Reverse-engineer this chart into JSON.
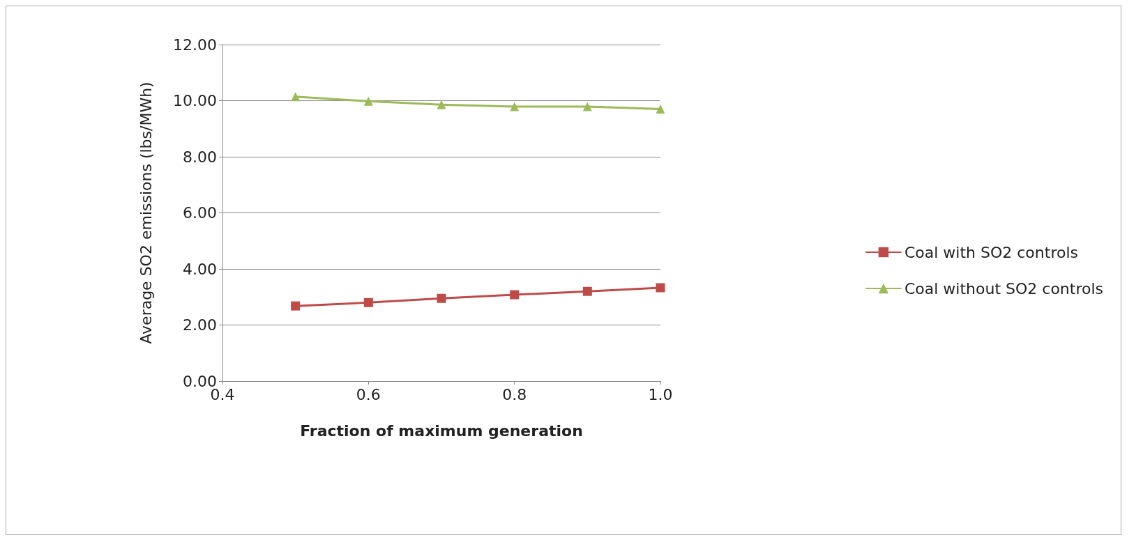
{
  "chart_data": {
    "type": "line",
    "xlabel": "Fraction of maximum generation",
    "ylabel": "Average SO2 emissions (lbs/MWh)",
    "x": [
      0.5,
      0.6,
      0.7,
      0.8,
      0.9,
      1.0
    ],
    "series": [
      {
        "name": "Coal with SO2 controls",
        "color": "#be4b48",
        "marker": "square",
        "values": [
          2.68,
          2.8,
          2.95,
          3.08,
          3.2,
          3.33
        ]
      },
      {
        "name": "Coal without SO2 controls",
        "color": "#9bbb59",
        "marker": "triangle",
        "values": [
          10.14,
          9.98,
          9.86,
          9.79,
          9.79,
          9.7
        ]
      }
    ],
    "xlim": [
      0.4,
      1.0
    ],
    "xticks": [
      0.4,
      0.6,
      0.8,
      {
        "value": 1,
        "label": "1.0"
      }
    ],
    "ylim": [
      0,
      12
    ],
    "yticks": [
      {
        "value": 0,
        "label": "0.00"
      },
      {
        "value": 2,
        "label": "2.00"
      },
      {
        "value": 4,
        "label": "4.00"
      },
      {
        "value": 6,
        "label": "6.00"
      },
      {
        "value": 8,
        "label": "8.00"
      },
      {
        "value": 10,
        "label": "10.00"
      },
      {
        "value": 12,
        "label": "12.00"
      }
    ],
    "grid": "y",
    "legend": "right",
    "line_style": "solid"
  }
}
